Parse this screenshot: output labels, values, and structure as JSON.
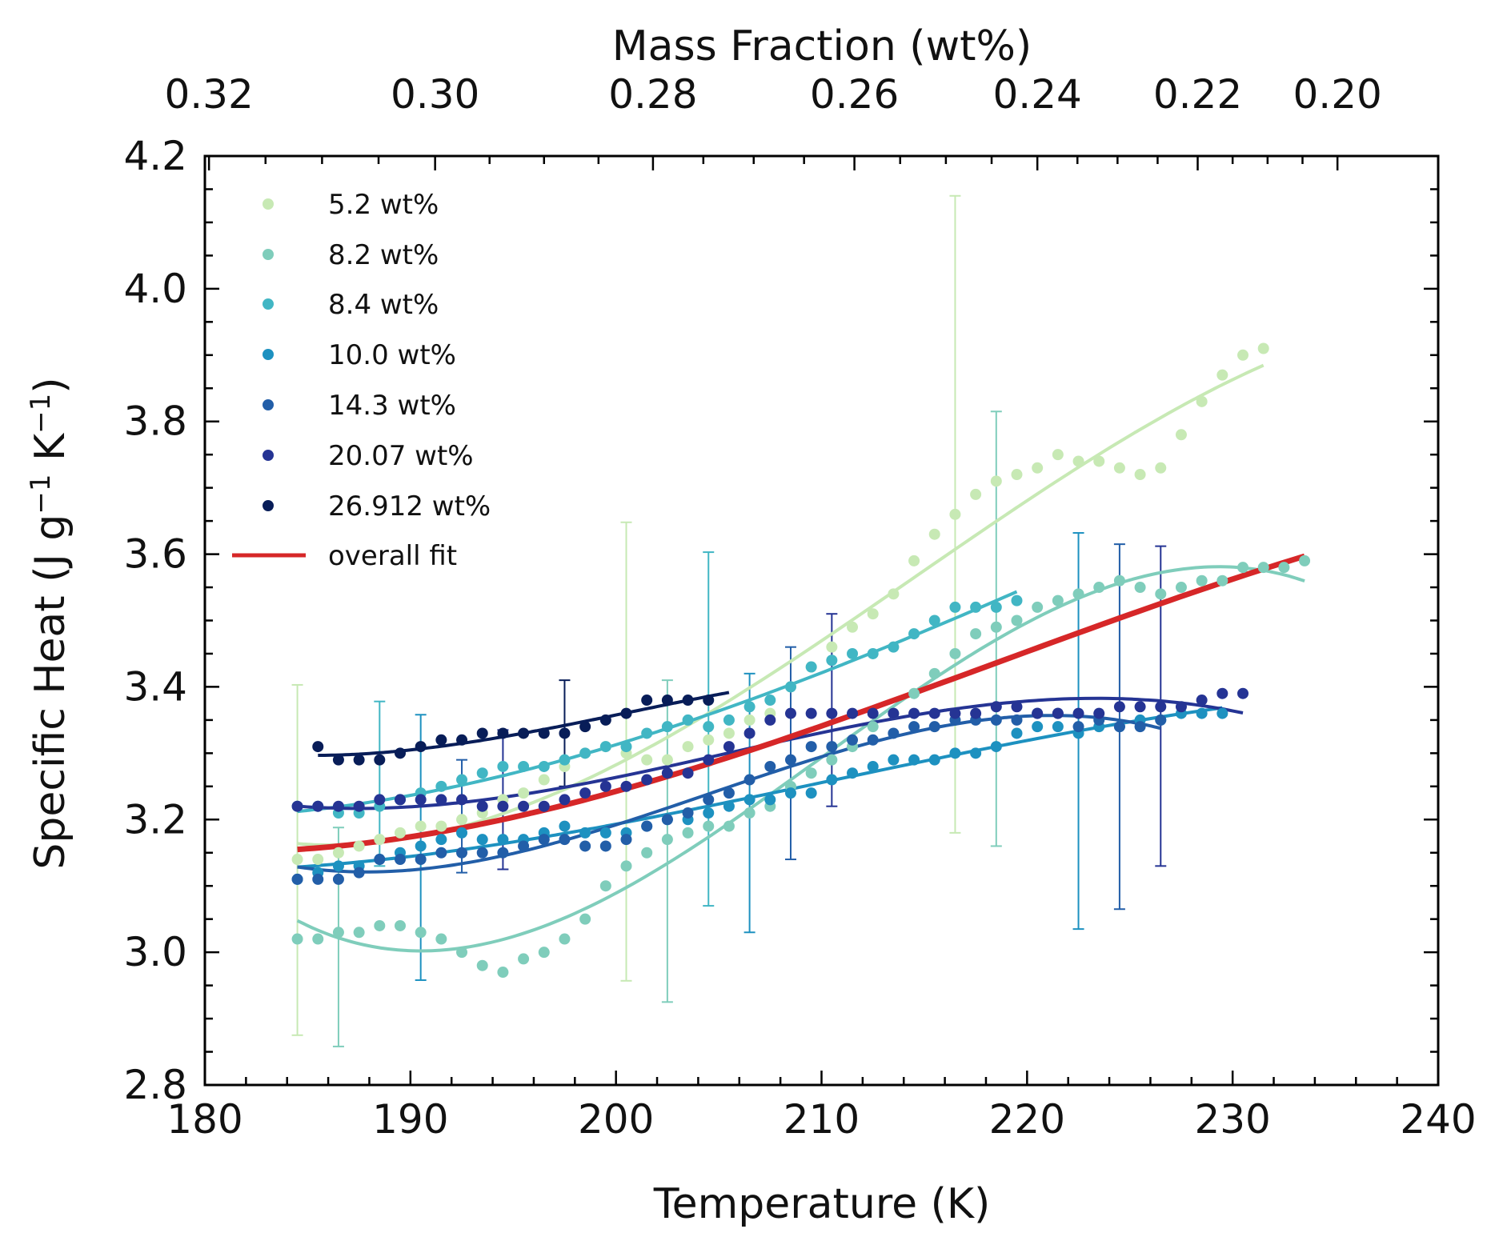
{
  "chart_data": {
    "type": "scatter",
    "xlabel": "Temperature (K)",
    "ylabel_main": "Specific Heat (J g",
    "ylabel_sup1": "−1",
    "ylabel_mid": " K",
    "ylabel_sup2": "−1",
    "ylabel_end": ")",
    "top_xlabel": "Mass Fraction (wt%)",
    "xlim": [
      180,
      240
    ],
    "ylim": [
      2.8,
      4.2
    ],
    "xticks": [
      "180",
      "190",
      "200",
      "210",
      "220",
      "230",
      "240"
    ],
    "yticks": [
      "2.8",
      "3.0",
      "3.2",
      "3.4",
      "3.6",
      "3.8",
      "4.0",
      "4.2"
    ],
    "top_ticks": [
      {
        "label": "0.32",
        "x": 180.2
      },
      {
        "label": "0.30",
        "x": 191.2
      },
      {
        "label": "0.28",
        "x": 201.8
      },
      {
        "label": "0.26",
        "x": 211.6
      },
      {
        "label": "0.24",
        "x": 220.5
      },
      {
        "label": "0.22",
        "x": 228.3
      },
      {
        "label": "0.20",
        "x": 235.1
      }
    ],
    "legend_position": "top-left",
    "series": [
      {
        "name": "5.2 wt%",
        "color": "#c7e9b4",
        "x": [
          184.5,
          185.5,
          186.5,
          187.5,
          188.5,
          189.5,
          190.5,
          191.5,
          192.5,
          193.5,
          194.5,
          195.5,
          196.5,
          197.5,
          198.5,
          199.5,
          200.5,
          201.5,
          202.5,
          203.5,
          204.5,
          205.5,
          206.5,
          207.5,
          208.5,
          209.5,
          210.5,
          211.5,
          212.5,
          213.5,
          214.5,
          215.5,
          216.5,
          217.5,
          218.5,
          219.5,
          220.5,
          221.5,
          222.5,
          223.5,
          224.5,
          225.5,
          226.5,
          227.5,
          228.5,
          229.5,
          230.5,
          231.5
        ],
        "y": [
          3.14,
          3.14,
          3.15,
          3.16,
          3.17,
          3.18,
          3.19,
          3.19,
          3.2,
          3.21,
          3.23,
          3.24,
          3.26,
          3.28,
          3.3,
          3.31,
          3.3,
          3.29,
          3.29,
          3.31,
          3.32,
          3.33,
          3.35,
          3.36,
          3.4,
          3.43,
          3.46,
          3.49,
          3.51,
          3.54,
          3.59,
          3.63,
          3.66,
          3.69,
          3.71,
          3.72,
          3.73,
          3.75,
          3.74,
          3.74,
          3.73,
          3.72,
          3.73,
          3.78,
          3.83,
          3.87,
          3.9,
          3.91
        ],
        "fit_x": [
          184.5,
          231.5
        ],
        "fit": [
          3.13,
          3.86
        ],
        "errorbars": [
          {
            "x": 184.5,
            "low": 2.875,
            "high": 3.403
          },
          {
            "x": 200.5,
            "low": 2.957,
            "high": 3.648
          },
          {
            "x": 216.5,
            "low": 3.18,
            "high": 4.14
          }
        ]
      },
      {
        "name": "8.2 wt%",
        "color": "#7fcdbb",
        "x": [
          184.5,
          185.5,
          186.5,
          187.5,
          188.5,
          189.5,
          190.5,
          191.5,
          192.5,
          193.5,
          194.5,
          195.5,
          196.5,
          197.5,
          198.5,
          199.5,
          200.5,
          201.5,
          202.5,
          203.5,
          204.5,
          205.5,
          206.5,
          207.5,
          208.5,
          209.5,
          210.5,
          211.5,
          212.5,
          213.5,
          214.5,
          215.5,
          216.5,
          217.5,
          218.5,
          219.5,
          220.5,
          221.5,
          222.5,
          223.5,
          224.5,
          225.5,
          226.5,
          227.5,
          228.5,
          229.5,
          230.5,
          231.5,
          232.5,
          233.5
        ],
        "y": [
          3.02,
          3.02,
          3.03,
          3.03,
          3.04,
          3.04,
          3.03,
          3.02,
          3.0,
          2.98,
          2.97,
          2.99,
          3.0,
          3.02,
          3.05,
          3.1,
          3.13,
          3.15,
          3.17,
          3.18,
          3.19,
          3.19,
          3.21,
          3.22,
          3.25,
          3.27,
          3.29,
          3.31,
          3.34,
          3.36,
          3.39,
          3.42,
          3.45,
          3.48,
          3.49,
          3.5,
          3.52,
          3.53,
          3.54,
          3.55,
          3.56,
          3.55,
          3.54,
          3.55,
          3.56,
          3.56,
          3.58,
          3.58,
          3.58,
          3.59
        ],
        "fit_x": [
          184.5,
          233.5
        ],
        "fit": [
          3.05,
          3.56
        ],
        "errorbars": [
          {
            "x": 186.5,
            "low": 2.858,
            "high": 3.188
          },
          {
            "x": 202.5,
            "low": 2.925,
            "high": 3.41
          },
          {
            "x": 218.5,
            "low": 3.16,
            "high": 3.815
          }
        ]
      },
      {
        "name": "8.4 wt%",
        "color": "#41b6c4",
        "x": [
          184.5,
          185.5,
          186.5,
          187.5,
          188.5,
          189.5,
          190.5,
          191.5,
          192.5,
          193.5,
          194.5,
          195.5,
          196.5,
          197.5,
          198.5,
          199.5,
          200.5,
          201.5,
          202.5,
          203.5,
          204.5,
          205.5,
          206.5,
          207.5,
          208.5,
          209.5,
          210.5,
          211.5,
          212.5,
          213.5,
          214.5,
          215.5,
          216.5,
          217.5,
          218.5,
          219.5
        ],
        "y": [
          3.22,
          3.22,
          3.21,
          3.21,
          3.22,
          3.23,
          3.24,
          3.25,
          3.26,
          3.27,
          3.28,
          3.28,
          3.28,
          3.29,
          3.3,
          3.31,
          3.31,
          3.33,
          3.34,
          3.35,
          3.34,
          3.35,
          3.37,
          3.38,
          3.4,
          3.43,
          3.44,
          3.45,
          3.45,
          3.46,
          3.48,
          3.5,
          3.52,
          3.52,
          3.52,
          3.53
        ],
        "fit_x": [
          184.5,
          219.5
        ],
        "fit": [
          3.21,
          3.54
        ],
        "errorbars": [
          {
            "x": 188.5,
            "low": 3.13,
            "high": 3.378
          },
          {
            "x": 204.5,
            "low": 3.07,
            "high": 3.603
          }
        ]
      },
      {
        "name": "10.0 wt%",
        "color": "#1d91c0",
        "x": [
          184.5,
          185.5,
          186.5,
          187.5,
          188.5,
          189.5,
          190.5,
          191.5,
          192.5,
          193.5,
          194.5,
          195.5,
          196.5,
          197.5,
          198.5,
          199.5,
          200.5,
          201.5,
          202.5,
          203.5,
          204.5,
          205.5,
          206.5,
          207.5,
          208.5,
          209.5,
          210.5,
          211.5,
          212.5,
          213.5,
          214.5,
          215.5,
          216.5,
          217.5,
          218.5,
          219.5,
          220.5,
          221.5,
          222.5,
          223.5,
          224.5,
          225.5,
          226.5,
          227.5,
          228.5,
          229.5
        ],
        "y": [
          3.11,
          3.12,
          3.13,
          3.13,
          3.14,
          3.15,
          3.16,
          3.17,
          3.18,
          3.17,
          3.17,
          3.17,
          3.18,
          3.19,
          3.18,
          3.18,
          3.18,
          3.19,
          3.2,
          3.2,
          3.21,
          3.22,
          3.23,
          3.23,
          3.24,
          3.24,
          3.26,
          3.27,
          3.28,
          3.29,
          3.29,
          3.29,
          3.3,
          3.3,
          3.31,
          3.33,
          3.34,
          3.34,
          3.33,
          3.34,
          3.34,
          3.35,
          3.35,
          3.36,
          3.36,
          3.36
        ],
        "fit_x": [
          184.5,
          229.5
        ],
        "fit": [
          3.105,
          3.36
        ],
        "errorbars": [
          {
            "x": 190.5,
            "low": 2.958,
            "high": 3.358
          },
          {
            "x": 206.5,
            "low": 3.03,
            "high": 3.42
          },
          {
            "x": 222.5,
            "low": 3.035,
            "high": 3.632
          }
        ]
      },
      {
        "name": "14.3 wt%",
        "color": "#225ea8",
        "x": [
          184.5,
          185.5,
          186.5,
          187.5,
          188.5,
          189.5,
          190.5,
          191.5,
          192.5,
          193.5,
          194.5,
          195.5,
          196.5,
          197.5,
          198.5,
          199.5,
          200.5,
          201.5,
          202.5,
          203.5,
          204.5,
          205.5,
          206.5,
          207.5,
          208.5,
          209.5,
          210.5,
          211.5,
          212.5,
          213.5,
          214.5,
          215.5,
          216.5,
          217.5,
          218.5,
          219.5,
          220.5,
          221.5,
          222.5,
          223.5,
          224.5,
          225.5,
          226.5
        ],
        "y": [
          3.11,
          3.11,
          3.11,
          3.12,
          3.14,
          3.14,
          3.14,
          3.15,
          3.15,
          3.15,
          3.15,
          3.16,
          3.17,
          3.17,
          3.16,
          3.16,
          3.17,
          3.19,
          3.2,
          3.21,
          3.23,
          3.24,
          3.26,
          3.28,
          3.29,
          3.31,
          3.31,
          3.32,
          3.32,
          3.33,
          3.34,
          3.34,
          3.35,
          3.35,
          3.35,
          3.35,
          3.36,
          3.36,
          3.34,
          3.35,
          3.34,
          3.34,
          3.35
        ],
        "fit_x": [
          184.5,
          226.5
        ],
        "fit": [
          3.115,
          3.36
        ],
        "errorbars": [
          {
            "x": 192.5,
            "low": 3.12,
            "high": 3.29
          },
          {
            "x": 208.5,
            "low": 3.14,
            "high": 3.46
          },
          {
            "x": 224.5,
            "low": 3.065,
            "high": 3.615
          }
        ]
      },
      {
        "name": "20.07 wt%",
        "color": "#253494",
        "x": [
          184.5,
          185.5,
          186.5,
          187.5,
          188.5,
          189.5,
          190.5,
          191.5,
          192.5,
          193.5,
          194.5,
          195.5,
          196.5,
          197.5,
          198.5,
          199.5,
          200.5,
          201.5,
          202.5,
          203.5,
          204.5,
          205.5,
          206.5,
          207.5,
          208.5,
          209.5,
          210.5,
          211.5,
          212.5,
          213.5,
          214.5,
          215.5,
          216.5,
          217.5,
          218.5,
          219.5,
          220.5,
          221.5,
          222.5,
          223.5,
          224.5,
          225.5,
          226.5,
          227.5,
          228.5,
          229.5,
          230.5
        ],
        "y": [
          3.22,
          3.22,
          3.22,
          3.22,
          3.23,
          3.23,
          3.23,
          3.23,
          3.23,
          3.22,
          3.22,
          3.22,
          3.22,
          3.23,
          3.24,
          3.25,
          3.25,
          3.26,
          3.27,
          3.27,
          3.29,
          3.31,
          3.33,
          3.35,
          3.36,
          3.36,
          3.36,
          3.36,
          3.36,
          3.36,
          3.36,
          3.36,
          3.36,
          3.36,
          3.37,
          3.37,
          3.36,
          3.36,
          3.36,
          3.36,
          3.37,
          3.37,
          3.37,
          3.37,
          3.38,
          3.39,
          3.39
        ],
        "fit_x": [
          184.5,
          230.5
        ],
        "fit": [
          3.24,
          3.37
        ],
        "errorbars": [
          {
            "x": 194.5,
            "low": 3.125,
            "high": 3.335
          },
          {
            "x": 210.5,
            "low": 3.22,
            "high": 3.51
          },
          {
            "x": 226.5,
            "low": 3.13,
            "high": 3.612
          }
        ]
      },
      {
        "name": "26.912 wt%",
        "color": "#081d58",
        "x": [
          185.5,
          186.5,
          187.5,
          188.5,
          189.5,
          190.5,
          191.5,
          192.5,
          193.5,
          194.5,
          195.5,
          196.5,
          197.5,
          198.5,
          199.5,
          200.5,
          201.5,
          202.5,
          203.5,
          204.5
        ],
        "y": [
          3.31,
          3.29,
          3.29,
          3.29,
          3.3,
          3.31,
          3.32,
          3.32,
          3.33,
          3.33,
          3.33,
          3.33,
          3.33,
          3.34,
          3.35,
          3.36,
          3.38,
          3.38,
          3.38,
          3.38
        ],
        "fit_x": [
          185.5,
          205.5
        ],
        "fit": [
          3.3,
          3.38
        ],
        "errorbars": [
          {
            "x": 197.5,
            "low": 3.25,
            "high": 3.41
          }
        ]
      }
    ],
    "overall_fit": {
      "name": "overall fit",
      "color": "#d62728",
      "x": [
        184.5,
        233.5
      ]
    }
  }
}
